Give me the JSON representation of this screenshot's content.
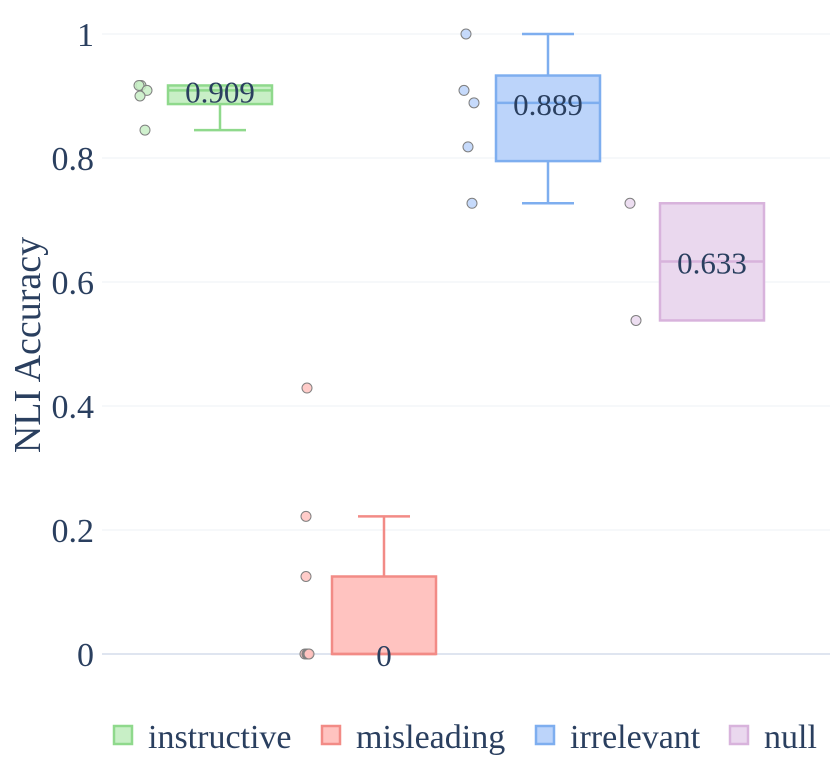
{
  "chart_data": {
    "type": "box",
    "ylabel": "NLI Accuracy",
    "ylim": [
      -0.05,
      1.03
    ],
    "yticks": [
      0,
      0.2,
      0.4,
      0.6,
      0.8,
      1
    ],
    "ytick_labels": [
      "0",
      "0.2",
      "0.4",
      "0.6",
      "0.8",
      "1"
    ],
    "grid": true,
    "legend_position": "bottom",
    "series": [
      {
        "name": "instructive",
        "color": "#8fd98c",
        "fill": "#c8efc6",
        "q1": 0.887,
        "median": 0.909,
        "q3": 0.917,
        "whisker_low": 0.845,
        "whisker_high": 0.917,
        "points": [
          0.917,
          0.917,
          0.909,
          0.9,
          0.845
        ],
        "median_label": "0.909"
      },
      {
        "name": "misleading",
        "color": "#f28b86",
        "fill": "#ffc3c0",
        "q1": 0,
        "median": 0,
        "q3": 0.125,
        "whisker_low": 0,
        "whisker_high": 0.222,
        "points": [
          0.429,
          0.222,
          0.125,
          0,
          0,
          0,
          0
        ],
        "median_label": "0"
      },
      {
        "name": "irrelevant",
        "color": "#7eaeef",
        "fill": "#bcd4fa",
        "q1": 0.795,
        "median": 0.889,
        "q3": 0.933,
        "whisker_low": 0.727,
        "whisker_high": 1.0,
        "points": [
          1.0,
          0.909,
          0.889,
          0.818,
          0.727
        ],
        "median_label": "0.889"
      },
      {
        "name": "null",
        "color": "#d8b3dc",
        "fill": "#ead8ee",
        "q1": 0.538,
        "median": 0.633,
        "q3": 0.727,
        "whisker_low": 0.538,
        "whisker_high": 0.727,
        "points": [
          0.727,
          0.538
        ],
        "median_label": "0.633"
      }
    ]
  }
}
